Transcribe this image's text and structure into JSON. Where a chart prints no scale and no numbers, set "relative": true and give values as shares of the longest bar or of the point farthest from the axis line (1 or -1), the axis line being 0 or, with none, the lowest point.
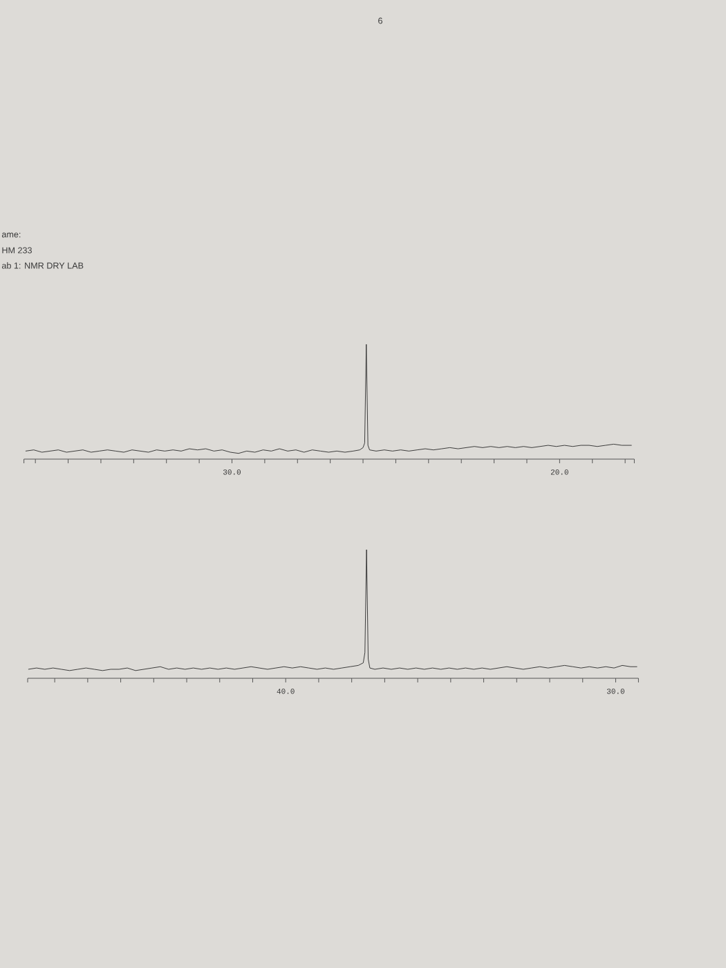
{
  "chart_data": [
    {
      "type": "line",
      "relative": true,
      "tick_labels": "x",
      "annotations": [
        "ame:",
        "HM 233",
        "ab 1: NMR DRY LAB",
        "6"
      ],
      "xlim": [
        36.35,
        17.72
      ],
      "xticks": [
        {
          "value": 36.35,
          "label": null
        },
        {
          "value": 36,
          "label": null
        },
        {
          "value": 35,
          "label": null
        },
        {
          "value": 34,
          "label": null
        },
        {
          "value": 33,
          "label": null
        },
        {
          "value": 32,
          "label": null
        },
        {
          "value": 31,
          "label": null
        },
        {
          "value": 30,
          "label": "30.0"
        },
        {
          "value": 29,
          "label": null
        },
        {
          "value": 28,
          "label": null
        },
        {
          "value": 27,
          "label": null
        },
        {
          "value": 26,
          "label": null
        },
        {
          "value": 25,
          "label": null
        },
        {
          "value": 24,
          "label": null
        },
        {
          "value": 23,
          "label": null
        },
        {
          "value": 22,
          "label": null
        },
        {
          "value": 21,
          "label": null
        },
        {
          "value": 20,
          "label": "20.0"
        },
        {
          "value": 19,
          "label": null
        },
        {
          "value": 18,
          "label": null
        },
        {
          "value": 17.72,
          "label": null
        }
      ],
      "x": [
        36.3,
        36.05,
        35.8,
        35.55,
        35.3,
        35.05,
        34.8,
        34.55,
        34.3,
        34.05,
        33.8,
        33.55,
        33.3,
        33.05,
        32.8,
        32.55,
        32.3,
        32.05,
        31.8,
        31.55,
        31.3,
        31.05,
        30.8,
        30.55,
        30.3,
        30.05,
        29.8,
        29.55,
        29.3,
        29.05,
        28.8,
        28.55,
        28.3,
        28.05,
        27.8,
        27.55,
        27.3,
        27.05,
        26.8,
        26.55,
        26.3,
        26.1,
        26.0,
        25.95,
        25.9,
        25.85,
        25.8,
        25.6,
        25.35,
        25.1,
        24.85,
        24.6,
        24.35,
        24.1,
        23.85,
        23.6,
        23.35,
        23.1,
        22.85,
        22.6,
        22.35,
        22.1,
        21.85,
        21.6,
        21.35,
        21.1,
        20.85,
        20.6,
        20.35,
        20.1,
        19.85,
        19.6,
        19.35,
        19.1,
        18.85,
        18.6,
        18.35,
        18.1,
        17.8
      ],
      "series": [
        {
          "color": "#2a2a2a",
          "values": [
            0.07,
            0.08,
            0.06,
            0.07,
            0.08,
            0.06,
            0.07,
            0.08,
            0.06,
            0.07,
            0.08,
            0.07,
            0.06,
            0.08,
            0.07,
            0.06,
            0.08,
            0.07,
            0.08,
            0.07,
            0.09,
            0.08,
            0.09,
            0.07,
            0.08,
            0.06,
            0.05,
            0.07,
            0.06,
            0.08,
            0.07,
            0.09,
            0.07,
            0.08,
            0.06,
            0.08,
            0.07,
            0.06,
            0.07,
            0.06,
            0.07,
            0.08,
            0.1,
            0.14,
            1.0,
            0.12,
            0.08,
            0.07,
            0.08,
            0.07,
            0.08,
            0.07,
            0.08,
            0.09,
            0.08,
            0.09,
            0.1,
            0.09,
            0.1,
            0.11,
            0.1,
            0.11,
            0.1,
            0.11,
            0.1,
            0.11,
            0.1,
            0.11,
            0.12,
            0.11,
            0.12,
            0.11,
            0.12,
            0.12,
            0.11,
            0.12,
            0.13,
            0.12,
            0.12
          ]
        }
      ]
    },
    {
      "type": "line",
      "relative": true,
      "tick_labels": "x",
      "xlim": [
        47.82,
        29.31
      ],
      "xticks": [
        {
          "value": 47.82,
          "label": null
        },
        {
          "value": 47,
          "label": null
        },
        {
          "value": 46,
          "label": null
        },
        {
          "value": 45,
          "label": null
        },
        {
          "value": 44,
          "label": null
        },
        {
          "value": 43,
          "label": null
        },
        {
          "value": 42,
          "label": null
        },
        {
          "value": 41,
          "label": null
        },
        {
          "value": 40,
          "label": "40.0"
        },
        {
          "value": 39,
          "label": null
        },
        {
          "value": 38,
          "label": null
        },
        {
          "value": 37,
          "label": null
        },
        {
          "value": 36,
          "label": null
        },
        {
          "value": 35,
          "label": null
        },
        {
          "value": 34,
          "label": null
        },
        {
          "value": 33,
          "label": null
        },
        {
          "value": 32,
          "label": null
        },
        {
          "value": 31,
          "label": null
        },
        {
          "value": 30,
          "label": "30.0"
        },
        {
          "value": 29.31,
          "label": null
        }
      ],
      "x": [
        47.8,
        47.55,
        47.3,
        47.05,
        46.8,
        46.55,
        46.3,
        46.05,
        45.8,
        45.55,
        45.3,
        45.05,
        44.8,
        44.55,
        44.3,
        44.05,
        43.8,
        43.55,
        43.3,
        43.05,
        42.8,
        42.55,
        42.3,
        42.05,
        41.8,
        41.55,
        41.3,
        41.05,
        40.8,
        40.55,
        40.3,
        40.05,
        39.8,
        39.55,
        39.3,
        39.05,
        38.8,
        38.55,
        38.3,
        38.05,
        37.8,
        37.65,
        37.6,
        37.55,
        37.5,
        37.45,
        37.3,
        37.05,
        36.8,
        36.55,
        36.3,
        36.05,
        35.8,
        35.55,
        35.3,
        35.05,
        34.8,
        34.55,
        34.3,
        34.05,
        33.8,
        33.55,
        33.3,
        33.05,
        32.8,
        32.55,
        32.3,
        32.05,
        31.8,
        31.55,
        31.3,
        31.05,
        30.8,
        30.55,
        30.3,
        30.05,
        29.8,
        29.55,
        29.35
      ],
      "series": [
        {
          "color": "#2a2a2a",
          "values": [
            0.07,
            0.08,
            0.07,
            0.08,
            0.07,
            0.06,
            0.07,
            0.08,
            0.07,
            0.06,
            0.07,
            0.07,
            0.08,
            0.06,
            0.07,
            0.08,
            0.09,
            0.07,
            0.08,
            0.07,
            0.08,
            0.07,
            0.08,
            0.07,
            0.08,
            0.07,
            0.08,
            0.09,
            0.08,
            0.07,
            0.08,
            0.09,
            0.08,
            0.09,
            0.08,
            0.07,
            0.08,
            0.07,
            0.08,
            0.09,
            0.1,
            0.12,
            0.2,
            1.0,
            0.15,
            0.08,
            0.07,
            0.08,
            0.07,
            0.08,
            0.07,
            0.08,
            0.07,
            0.08,
            0.07,
            0.08,
            0.07,
            0.08,
            0.07,
            0.08,
            0.07,
            0.08,
            0.09,
            0.08,
            0.07,
            0.08,
            0.09,
            0.08,
            0.09,
            0.1,
            0.09,
            0.08,
            0.09,
            0.08,
            0.09,
            0.08,
            0.1,
            0.09,
            0.09
          ]
        }
      ]
    }
  ]
}
